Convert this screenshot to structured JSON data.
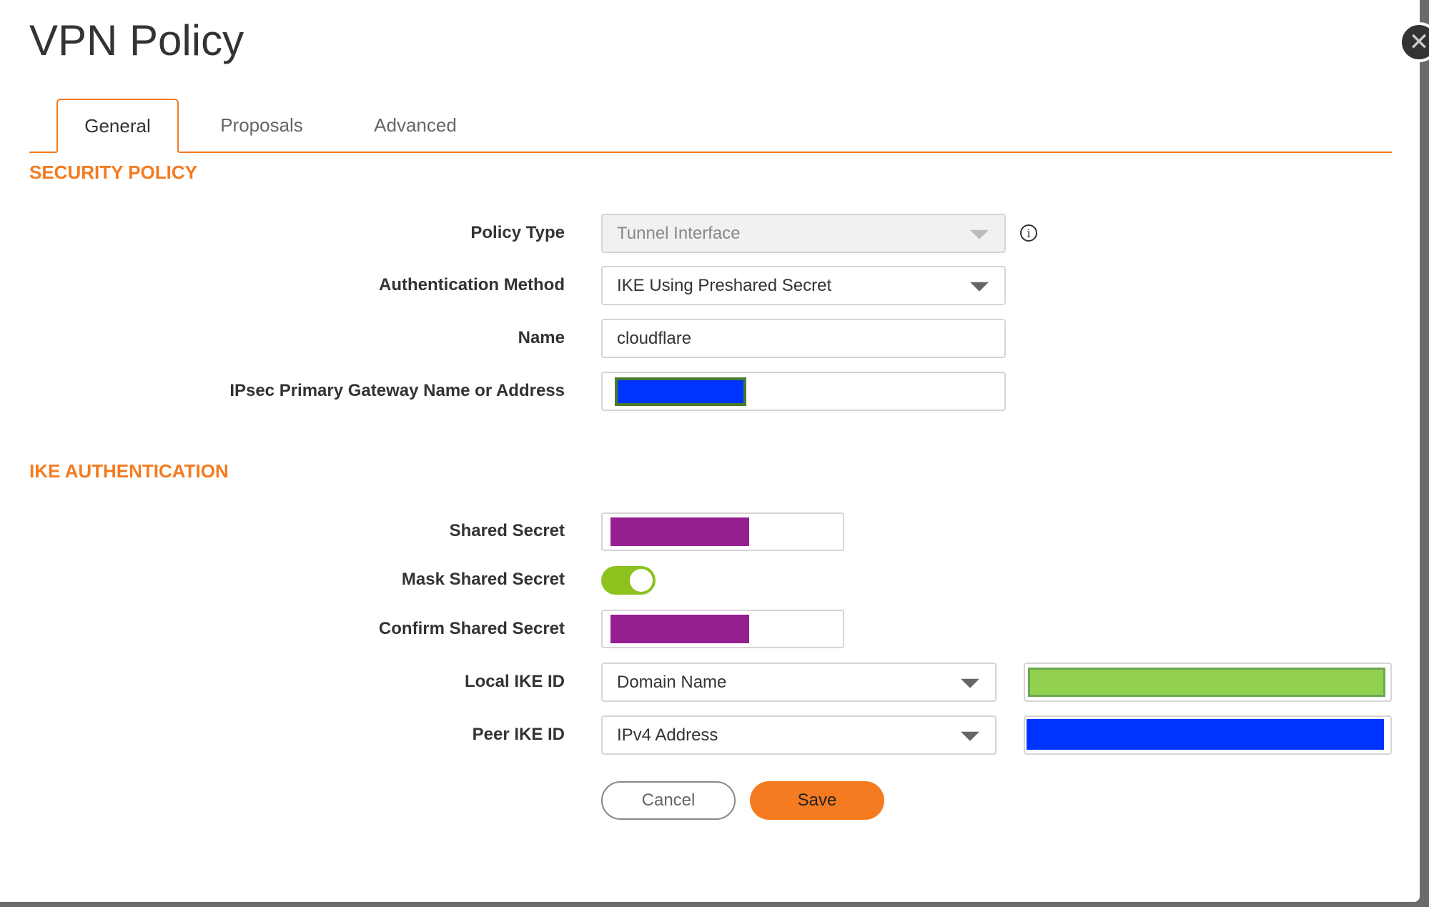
{
  "dialog": {
    "title": "VPN Policy",
    "close_icon": "close-icon"
  },
  "tabs": [
    {
      "label": "General",
      "active": true
    },
    {
      "label": "Proposals"
    },
    {
      "label": "Advanced"
    }
  ],
  "security_policy": {
    "heading": "SECURITY POLICY",
    "policy_type": {
      "label": "Policy Type",
      "value": "Tunnel Interface",
      "disabled": true
    },
    "auth_method": {
      "label": "Authentication Method",
      "value": "IKE Using Preshared Secret"
    },
    "name": {
      "label": "Name",
      "value": "cloudflare"
    },
    "gateway": {
      "label": "IPsec Primary Gateway Name or Address",
      "redaction_color": "#0033ff"
    }
  },
  "ike_auth": {
    "heading": "IKE AUTHENTICATION",
    "shared_secret": {
      "label": "Shared Secret",
      "redaction_color": "#951f91"
    },
    "mask_shared_secret": {
      "label": "Mask Shared Secret",
      "on": true
    },
    "confirm_shared_secret": {
      "label": "Confirm Shared Secret",
      "redaction_color": "#951f91"
    },
    "local_ike_id": {
      "label": "Local IKE ID",
      "type": "Domain Name",
      "redaction_color": "#92d050"
    },
    "peer_ike_id": {
      "label": "Peer IKE ID",
      "type": "IPv4 Address",
      "redaction_color": "#0033ff"
    }
  },
  "buttons": {
    "cancel": "Cancel",
    "save": "Save"
  },
  "colors": {
    "accent": "#f47b20",
    "toggle_on": "#8dc21f"
  }
}
